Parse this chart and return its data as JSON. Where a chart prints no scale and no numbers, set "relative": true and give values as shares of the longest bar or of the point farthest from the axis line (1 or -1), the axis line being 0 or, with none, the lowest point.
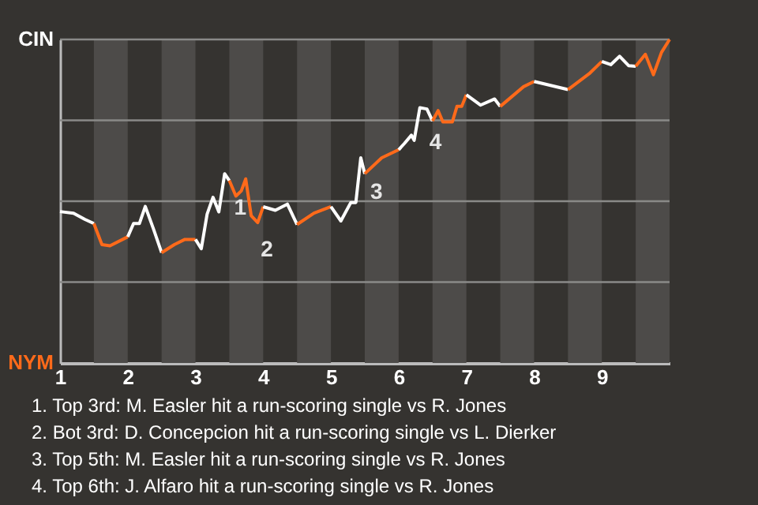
{
  "chart_data": {
    "type": "line",
    "relative": true,
    "xlim": [
      1,
      10
    ],
    "xticks": [
      1,
      2,
      3,
      4,
      5,
      6,
      7,
      8,
      9
    ],
    "series": [
      {
        "color": "#ffffff",
        "x": [
          1.0,
          1.2,
          1.367,
          1.5
        ],
        "values": [
          0.468,
          0.463,
          0.444,
          0.431
        ]
      },
      {
        "color": "#ff6a1a",
        "x": [
          1.5,
          1.619,
          1.738,
          2.0
        ],
        "values": [
          0.431,
          0.366,
          0.362,
          0.39
        ]
      },
      {
        "color": "#ffffff",
        "x": [
          2.0,
          2.086,
          2.172,
          2.259,
          2.379,
          2.5
        ],
        "values": [
          0.39,
          0.431,
          0.431,
          0.484,
          0.415,
          0.341
        ]
      },
      {
        "color": "#ff6a1a",
        "x": [
          2.5,
          2.688,
          2.844,
          3.0
        ],
        "values": [
          0.341,
          0.366,
          0.382,
          0.382
        ]
      },
      {
        "color": "#ffffff",
        "x": [
          3.0,
          3.086,
          3.172,
          3.259,
          3.345,
          3.431,
          3.5
        ],
        "values": [
          0.382,
          0.353,
          0.46,
          0.512,
          0.467,
          0.585,
          0.564
        ]
      },
      {
        "color": "#ff6a1a",
        "x": [
          3.5,
          3.597,
          3.677,
          3.742,
          3.823,
          3.919,
          4.0
        ],
        "values": [
          0.564,
          0.516,
          0.532,
          0.569,
          0.455,
          0.434,
          0.483
        ]
      },
      {
        "color": "#ffffff",
        "x": [
          4.0,
          4.179,
          4.357,
          4.5
        ],
        "values": [
          0.483,
          0.472,
          0.491,
          0.428
        ]
      },
      {
        "color": "#ff6a1a",
        "x": [
          4.5,
          4.75,
          5.0
        ],
        "values": [
          0.428,
          0.463,
          0.483
        ]
      },
      {
        "color": "#ffffff",
        "x": [
          5.0,
          5.147,
          5.294,
          5.368,
          5.441,
          5.5
        ],
        "values": [
          0.483,
          0.439,
          0.496,
          0.496,
          0.634,
          0.585
        ]
      },
      {
        "color": "#ff6a1a",
        "x": [
          5.5,
          5.75,
          6.0
        ],
        "values": [
          0.585,
          0.634,
          0.659
        ]
      },
      {
        "color": "#ffffff",
        "x": [
          6.0,
          6.083,
          6.188,
          6.229,
          6.313,
          6.417,
          6.5
        ],
        "values": [
          0.659,
          0.678,
          0.704,
          0.688,
          0.789,
          0.785,
          0.748
        ]
      },
      {
        "color": "#ff6a1a",
        "x": [
          6.5,
          6.583,
          6.653,
          6.792,
          6.861,
          6.931,
          7.0
        ],
        "values": [
          0.748,
          0.78,
          0.745,
          0.745,
          0.793,
          0.793,
          0.829
        ]
      },
      {
        "color": "#ffffff",
        "x": [
          7.0,
          7.208,
          7.417,
          7.5
        ],
        "values": [
          0.829,
          0.797,
          0.816,
          0.793
        ]
      },
      {
        "color": "#ff6a1a",
        "x": [
          7.5,
          7.844,
          8.0
        ],
        "values": [
          0.793,
          0.854,
          0.87
        ]
      },
      {
        "color": "#ffffff",
        "x": [
          8.0,
          8.5
        ],
        "values": [
          0.87,
          0.845
        ]
      },
      {
        "color": "#ff6a1a",
        "x": [
          8.5,
          8.813,
          9.0
        ],
        "values": [
          0.845,
          0.894,
          0.932
        ]
      },
      {
        "color": "#ffffff",
        "x": [
          9.0,
          9.132,
          9.263,
          9.395,
          9.5
        ],
        "values": [
          0.932,
          0.922,
          0.948,
          0.919,
          0.917
        ]
      },
      {
        "color": "#ff6a1a",
        "x": [
          9.5,
          9.643,
          9.762,
          9.881,
          10.0
        ],
        "values": [
          0.917,
          0.954,
          0.891,
          0.96,
          1.0
        ]
      }
    ],
    "bands": [
      {
        "axis": "x",
        "from": 1.5,
        "to": 2,
        "color": "#4d4b49"
      },
      {
        "axis": "x",
        "from": 2.5,
        "to": 3,
        "color": "#4d4b49"
      },
      {
        "axis": "x",
        "from": 3.5,
        "to": 4,
        "color": "#4d4b49"
      },
      {
        "axis": "x",
        "from": 4.5,
        "to": 5,
        "color": "#4d4b49"
      },
      {
        "axis": "x",
        "from": 5.5,
        "to": 6,
        "color": "#4d4b49"
      },
      {
        "axis": "x",
        "from": 6.5,
        "to": 7,
        "color": "#4d4b49"
      },
      {
        "axis": "x",
        "from": 7.5,
        "to": 8,
        "color": "#4d4b49"
      },
      {
        "axis": "x",
        "from": 8.5,
        "to": 9,
        "color": "#4d4b49"
      },
      {
        "axis": "x",
        "from": 9.5,
        "to": 10,
        "color": "#4d4b49"
      }
    ],
    "ref_lines": [
      {
        "axis": "y",
        "value": 0.25,
        "color": "#8a8a88"
      },
      {
        "axis": "y",
        "value": 0.5,
        "color": "#8a8a88"
      },
      {
        "axis": "y",
        "value": 0.75,
        "color": "#8a8a88"
      },
      {
        "axis": "y",
        "value": 1,
        "color": "#8a8a88"
      }
    ],
    "annotations": [
      "CIN",
      "NYM",
      {
        "text": "1",
        "x": 3.431,
        "y": 0.585
      },
      {
        "text": "2",
        "x": 3.823,
        "y": 0.455
      },
      {
        "text": "3",
        "x": 5.441,
        "y": 0.634
      },
      {
        "text": "4",
        "x": 6.313,
        "y": 0.789
      },
      "1. Top 3rd: M. Easler hit a run-scoring single vs R. Jones",
      "2. Bot 3rd: D. Concepcion hit a run-scoring single vs L. Dierker",
      "3. Top 5th: M. Easler hit a run-scoring single vs R. Jones",
      "4. Top 6th: J. Alfaro hit a run-scoring single vs R. Jones"
    ]
  }
}
